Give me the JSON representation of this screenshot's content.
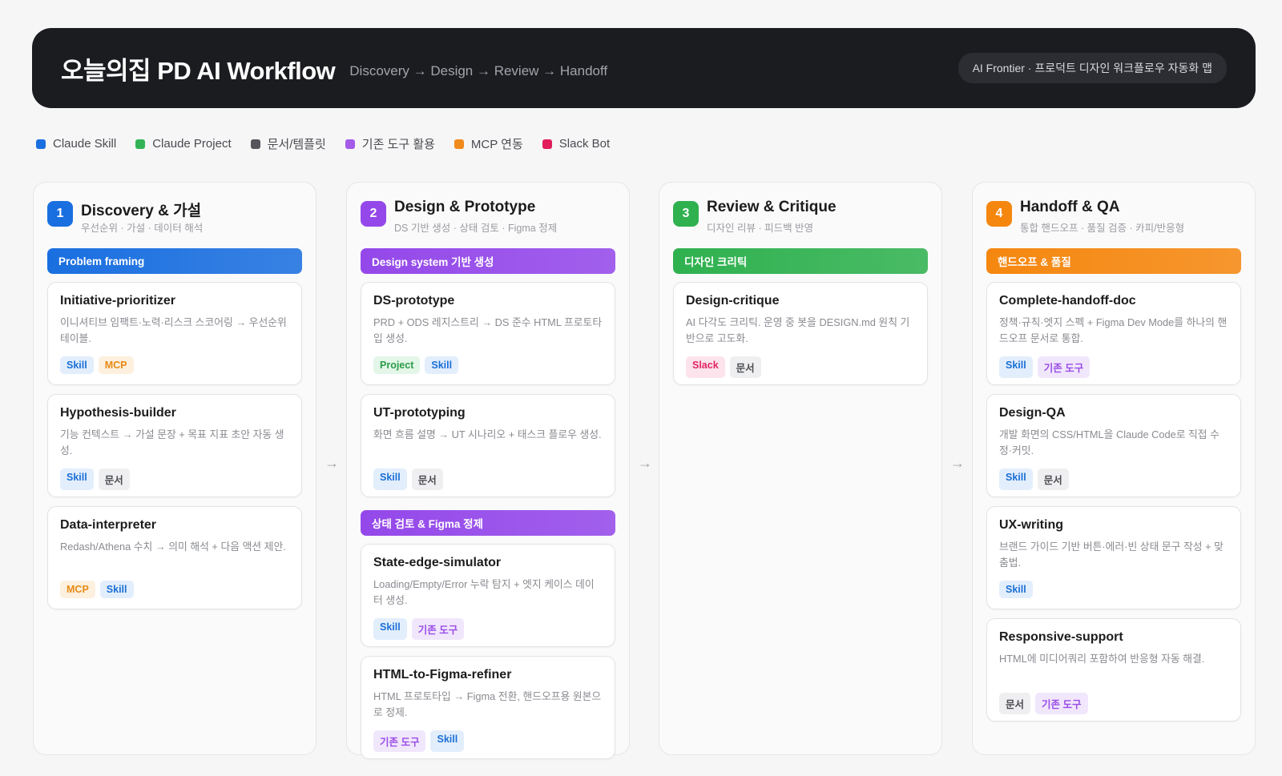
{
  "header": {
    "title": "오늘의집 PD AI Workflow",
    "subtitle": "Discovery → Design → Review → Handoff",
    "pill": "AI Frontier · 프로덕트 디자인 워크플로우 자동화 맵"
  },
  "legend": [
    {
      "label": "Claude Skill",
      "color": "#1a6fe0"
    },
    {
      "label": "Claude Project",
      "color": "#34b356"
    },
    {
      "label": "문서/템플릿",
      "color": "#55565c"
    },
    {
      "label": "기존 도구 활용",
      "color": "#a45be8"
    },
    {
      "label": "MCP 연동",
      "color": "#f08a1c"
    },
    {
      "label": "Slack Bot",
      "color": "#e11d5c"
    }
  ],
  "arrow_glyph": "→",
  "tag_labels": {
    "skill": "Skill",
    "mcp": "MCP",
    "doc": "문서",
    "project": "Project",
    "tool": "기존 도구",
    "slack": "Slack"
  },
  "columns": [
    {
      "number": "1",
      "title": "Discovery & 가설",
      "subtitle": "우선순위 · 가설 · 데이터 해석",
      "color": "#1a6fe0",
      "sections": [
        {
          "label": "Problem framing",
          "color": "#1a6fe0",
          "cards": [
            {
              "title": "Initiative-prioritizer",
              "desc": "이니셔티브 임팩트·노력·리스크 스코어링 → 우선순위 테이블.",
              "tags": [
                "skill",
                "mcp"
              ]
            },
            {
              "title": "Hypothesis-builder",
              "desc": "기능 컨텍스트 → 가설 문장 + 목표 지표 초안 자동 생성.",
              "tags": [
                "skill",
                "doc"
              ]
            },
            {
              "title": "Data-interpreter",
              "desc": "Redash/Athena 수치 → 의미 해석 + 다음 액션 제안.",
              "tags": [
                "mcp",
                "skill"
              ]
            }
          ]
        }
      ]
    },
    {
      "number": "2",
      "title": "Design & Prototype",
      "subtitle": "DS 기반 생성 · 상태 검토 · Figma 정제",
      "color": "#9448ea",
      "sections": [
        {
          "label": "Design system 기반 생성",
          "color": "#9448ea",
          "cards": [
            {
              "title": "DS-prototype",
              "desc": "PRD + ODS 레지스트리 → DS 준수 HTML 프로토타입 생성.",
              "tags": [
                "project",
                "skill"
              ]
            },
            {
              "title": "UT-prototyping",
              "desc": "화면 흐름 설명 → UT 시나리오 + 태스크 플로우 생성.",
              "tags": [
                "skill",
                "doc"
              ]
            }
          ]
        },
        {
          "label": "상태 검토 & Figma 정제",
          "color": "#9448ea",
          "cards": [
            {
              "title": "State-edge-simulator",
              "desc": "Loading/Empty/Error 누락 탐지 + 엣지 케이스 데이터 생성.",
              "tags": [
                "skill",
                "tool"
              ]
            },
            {
              "title": "HTML-to-Figma-refiner",
              "desc": "HTML 프로토타입 → Figma 전환, 핸드오프용 원본으로 정제.",
              "tags": [
                "tool",
                "skill"
              ]
            }
          ]
        }
      ]
    },
    {
      "number": "3",
      "title": "Review & Critique",
      "subtitle": "디자인 리뷰 · 피드백 반영",
      "color": "#2fb14f",
      "sections": [
        {
          "label": "디자인 크리틱",
          "color": "#2fb14f",
          "cards": [
            {
              "title": "Design-critique",
              "desc": "AI 다각도 크리틱. 운영 중 봇을 DESIGN.md 원칙 기반으로 고도화.",
              "tags": [
                "slack",
                "doc"
              ]
            }
          ]
        }
      ]
    },
    {
      "number": "4",
      "title": "Handoff & QA",
      "subtitle": "통합 핸드오프 · 품질 검증 · 카피/반응형",
      "color": "#f5870f",
      "sections": [
        {
          "label": "핸드오프 & 품질",
          "color": "#f5870f",
          "cards": [
            {
              "title": "Complete-handoff-doc",
              "desc": "정책·규칙·엣지 스펙 + Figma Dev Mode를 하나의 핸드오프 문서로 통합.",
              "tags": [
                "skill",
                "tool"
              ]
            },
            {
              "title": "Design-QA",
              "desc": "개발 화면의 CSS/HTML을 Claude Code로 직접 수정·커밋.",
              "tags": [
                "skill",
                "doc"
              ]
            },
            {
              "title": "UX-writing",
              "desc": "브랜드 가이드 기반 버튼·에러·빈 상태 문구 작성 + 맞춤법.",
              "tags": [
                "skill"
              ]
            },
            {
              "title": "Responsive-support",
              "desc": "HTML에 미디어쿼리 포함하여 반응형 자동 해결.",
              "tags": [
                "doc",
                "tool"
              ]
            }
          ]
        }
      ]
    }
  ]
}
